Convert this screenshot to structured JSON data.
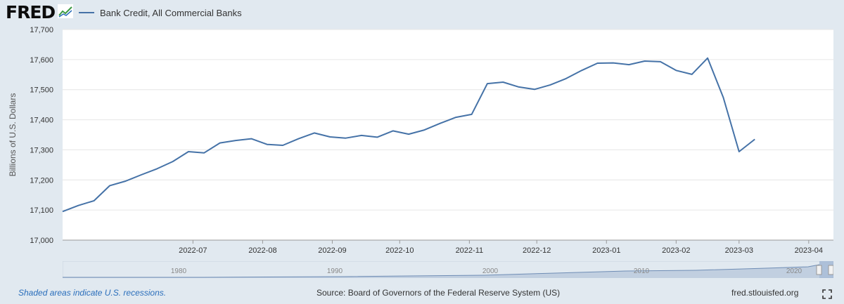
{
  "header": {
    "logo_text": "FRED",
    "logo_icon": "fred-graph-icon",
    "legend_label": "Bank Credit, All Commercial Banks"
  },
  "colors": {
    "series": "#4572a7",
    "background": "#e1e9f0",
    "plot_background": "#ffffff",
    "grid": "#e6e6e6",
    "navigator_fill": "#8aa5c9"
  },
  "chart_data": {
    "type": "line",
    "title": "",
    "xlabel": "",
    "ylabel": "Billions of U.S. Dollars",
    "ylim": [
      17000,
      17700
    ],
    "yticks": [
      17000,
      17100,
      17200,
      17300,
      17400,
      17500,
      17600,
      17700
    ],
    "ytick_labels": [
      "17,000",
      "17,100",
      "17,200",
      "17,300",
      "17,400",
      "17,500",
      "17,600",
      "17,700"
    ],
    "xlim": [
      "2022-05-04",
      "2023-04-12"
    ],
    "xticks": [
      "2022-07-01",
      "2022-08-01",
      "2022-09-01",
      "2022-10-01",
      "2022-11-01",
      "2022-12-01",
      "2023-01-01",
      "2023-02-01",
      "2023-03-01",
      "2023-04-01"
    ],
    "xtick_labels": [
      "2022-07",
      "2022-08",
      "2022-09",
      "2022-10",
      "2022-11",
      "2022-12",
      "2023-01",
      "2023-02",
      "2023-03",
      "2023-04"
    ],
    "grid": true,
    "series": [
      {
        "name": "Bank Credit, All Commercial Banks",
        "points": [
          [
            "2022-05-04",
            17095
          ],
          [
            "2022-05-11",
            17115
          ],
          [
            "2022-05-18",
            17131
          ],
          [
            "2022-05-25",
            17181
          ],
          [
            "2022-06-01",
            17196
          ],
          [
            "2022-06-08",
            17217
          ],
          [
            "2022-06-15",
            17237
          ],
          [
            "2022-06-22",
            17261
          ],
          [
            "2022-06-29",
            17294
          ],
          [
            "2022-07-06",
            17290
          ],
          [
            "2022-07-13",
            17323
          ],
          [
            "2022-07-20",
            17331
          ],
          [
            "2022-07-27",
            17337
          ],
          [
            "2022-08-03",
            17318
          ],
          [
            "2022-08-10",
            17315
          ],
          [
            "2022-08-17",
            17337
          ],
          [
            "2022-08-24",
            17356
          ],
          [
            "2022-08-31",
            17343
          ],
          [
            "2022-09-07",
            17339
          ],
          [
            "2022-09-14",
            17348
          ],
          [
            "2022-09-21",
            17342
          ],
          [
            "2022-09-28",
            17363
          ],
          [
            "2022-10-05",
            17352
          ],
          [
            "2022-10-12",
            17366
          ],
          [
            "2022-10-19",
            17388
          ],
          [
            "2022-10-26",
            17408
          ],
          [
            "2022-11-02",
            17418
          ],
          [
            "2022-11-09",
            17520
          ],
          [
            "2022-11-16",
            17525
          ],
          [
            "2022-11-23",
            17509
          ],
          [
            "2022-11-30",
            17501
          ],
          [
            "2022-12-07",
            17516
          ],
          [
            "2022-12-14",
            17537
          ],
          [
            "2022-12-21",
            17564
          ],
          [
            "2022-12-28",
            17588
          ],
          [
            "2023-01-04",
            17589
          ],
          [
            "2023-01-11",
            17583
          ],
          [
            "2023-01-18",
            17595
          ],
          [
            "2023-01-25",
            17593
          ],
          [
            "2023-02-01",
            17564
          ],
          [
            "2023-02-08",
            17551
          ],
          [
            "2023-02-15",
            17605
          ],
          [
            "2023-02-22",
            17474
          ],
          [
            "2023-03-01",
            17294
          ],
          [
            "2023-03-08",
            17335
          ]
        ]
      }
    ]
  },
  "navigator": {
    "years": [
      "1980",
      "1990",
      "2000",
      "2010",
      "2020"
    ]
  },
  "footer": {
    "recessions_note": "Shaded areas indicate U.S. recessions.",
    "source": "Source: Board of Governors of the Federal Reserve System (US)",
    "site": "fred.stlouisfed.org"
  }
}
